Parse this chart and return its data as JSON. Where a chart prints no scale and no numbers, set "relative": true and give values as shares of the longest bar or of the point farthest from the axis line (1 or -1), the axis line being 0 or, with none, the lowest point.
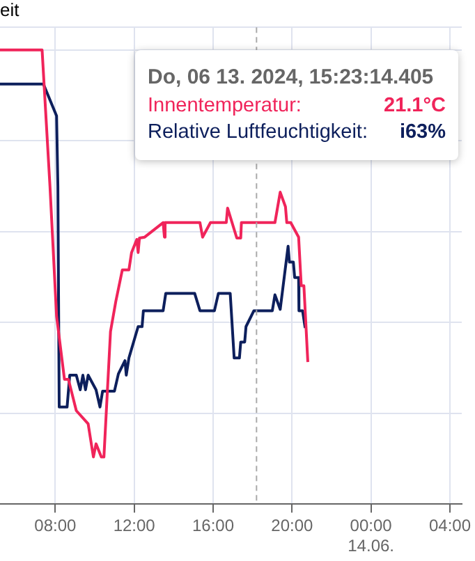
{
  "chart_data": {
    "type": "line",
    "title": "eit",
    "relative": true,
    "grid": true,
    "legend": false,
    "marker": "none",
    "line_style": "solid",
    "xlim": [
      "2024-06-13T05:12",
      "2024-06-14T04:36"
    ],
    "xticks": [
      {
        "value": "2024-06-13T08:00",
        "label": "08:00"
      },
      {
        "value": "2024-06-13T12:00",
        "label": "12:00"
      },
      {
        "value": "2024-06-13T16:00",
        "label": "16:00"
      },
      {
        "value": "2024-06-13T20:00",
        "label": "20:00"
      },
      {
        "value": "2024-06-14T00:00",
        "label": "00:00\n14.06."
      },
      {
        "value": "2024-06-14T04:00",
        "label": "04:00"
      }
    ],
    "ref_lines": [
      {
        "axis": "x",
        "value": "2024-06-13T18:12",
        "color": "#aaaaaa",
        "line_style": "dashed"
      }
    ],
    "annotations": [
      "Do, 06 13. 2024, 15:23:14.405",
      "21.1°C",
      "i63%"
    ],
    "series": [
      {
        "name": "Innentemperatur:",
        "color": "#f0245a",
        "x": [
          "2024-06-13T05:12",
          "2024-06-13T07:20",
          "2024-06-13T07:44",
          "2024-06-13T08:04",
          "2024-06-13T08:28",
          "2024-06-13T08:40",
          "2024-06-13T09:04",
          "2024-06-13T09:40",
          "2024-06-13T09:56",
          "2024-06-13T10:04",
          "2024-06-13T10:20",
          "2024-06-13T10:28",
          "2024-06-13T10:48",
          "2024-06-13T11:04",
          "2024-06-13T11:24",
          "2024-06-13T11:44",
          "2024-06-13T11:52",
          "2024-06-13T12:08",
          "2024-06-13T12:12",
          "2024-06-13T12:16",
          "2024-06-13T12:32",
          "2024-06-13T13:28",
          "2024-06-13T13:32",
          "2024-06-13T13:34",
          "2024-06-13T15:20",
          "2024-06-13T15:28",
          "2024-06-13T15:52",
          "2024-06-13T16:40",
          "2024-06-13T16:44",
          "2024-06-13T17:12",
          "2024-06-13T17:24",
          "2024-06-13T17:26",
          "2024-06-13T19:08",
          "2024-06-13T19:24",
          "2024-06-13T19:40",
          "2024-06-13T19:44",
          "2024-06-13T19:56",
          "2024-06-13T20:20",
          "2024-06-13T20:28",
          "2024-06-13T20:36",
          "2024-06-13T20:48"
        ],
        "values": [
          1.0,
          1.0,
          0.699,
          0.414,
          0.275,
          0.275,
          0.206,
          0.177,
          0.104,
          0.133,
          0.104,
          0.104,
          0.38,
          0.446,
          0.516,
          0.516,
          0.554,
          0.583,
          0.554,
          0.586,
          0.588,
          0.62,
          0.588,
          0.62,
          0.62,
          0.588,
          0.62,
          0.62,
          0.652,
          0.586,
          0.586,
          0.62,
          0.62,
          0.687,
          0.655,
          0.62,
          0.62,
          0.588,
          0.481,
          0.481,
          0.313
        ]
      },
      {
        "name": "Relative Luftfeuchtigkeit:",
        "color": "#0d1f5c",
        "x": [
          "2024-06-13T05:12",
          "2024-06-13T07:24",
          "2024-06-13T08:04",
          "2024-06-13T08:08",
          "2024-06-13T08:12",
          "2024-06-13T08:36",
          "2024-06-13T08:44",
          "2024-06-13T09:04",
          "2024-06-13T09:16",
          "2024-06-13T09:24",
          "2024-06-13T09:32",
          "2024-06-13T09:40",
          "2024-06-13T10:04",
          "2024-06-13T10:16",
          "2024-06-13T10:24",
          "2024-06-13T11:00",
          "2024-06-13T11:12",
          "2024-06-13T11:32",
          "2024-06-13T11:36",
          "2024-06-13T11:44",
          "2024-06-13T12:12",
          "2024-06-13T12:24",
          "2024-06-13T12:28",
          "2024-06-13T13:28",
          "2024-06-13T13:36",
          "2024-06-13T15:04",
          "2024-06-13T15:20",
          "2024-06-13T16:04",
          "2024-06-13T16:16",
          "2024-06-13T16:52",
          "2024-06-13T17:04",
          "2024-06-13T17:20",
          "2024-06-13T17:24",
          "2024-06-13T17:36",
          "2024-06-13T17:40",
          "2024-06-13T18:04",
          "2024-06-13T19:00",
          "2024-06-13T19:08",
          "2024-06-13T19:24",
          "2024-06-13T19:48",
          "2024-06-13T19:52",
          "2024-06-13T20:04",
          "2024-06-13T20:08",
          "2024-06-13T20:20",
          "2024-06-13T20:21",
          "2024-06-13T20:32",
          "2024-06-13T20:40"
        ],
        "values": [
          0.925,
          0.925,
          0.855,
          0.699,
          0.214,
          0.214,
          0.284,
          0.284,
          0.252,
          0.284,
          0.252,
          0.284,
          0.252,
          0.214,
          0.249,
          0.249,
          0.287,
          0.316,
          0.284,
          0.322,
          0.391,
          0.391,
          0.426,
          0.426,
          0.464,
          0.464,
          0.426,
          0.426,
          0.464,
          0.464,
          0.322,
          0.322,
          0.357,
          0.357,
          0.391,
          0.426,
          0.426,
          0.461,
          0.429,
          0.568,
          0.533,
          0.533,
          0.499,
          0.499,
          0.426,
          0.426,
          0.388
        ]
      }
    ]
  }
}
